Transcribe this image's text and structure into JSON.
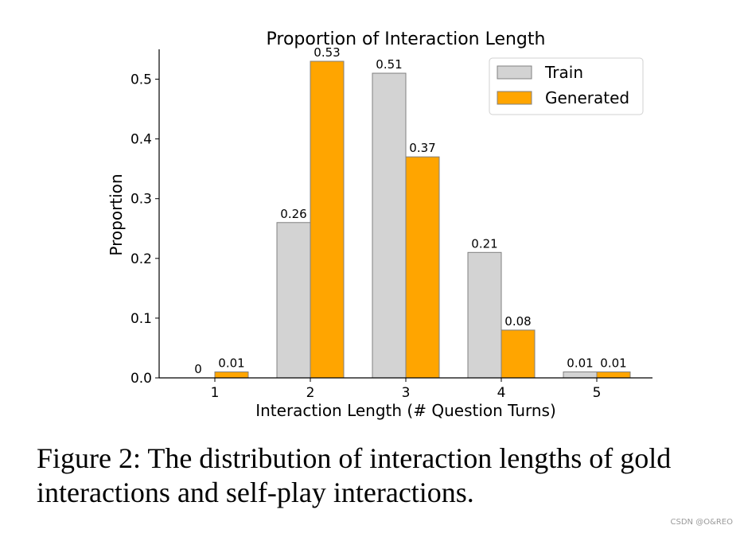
{
  "chart_data": {
    "type": "bar",
    "title": "Proportion of Interaction Length",
    "xlabel": "Interaction Length (# Question Turns)",
    "ylabel": "Proportion",
    "categories": [
      "1",
      "2",
      "3",
      "4",
      "5"
    ],
    "series": [
      {
        "name": "Train",
        "values": [
          0,
          0.26,
          0.51,
          0.21,
          0.01
        ],
        "labels": [
          "0",
          "0.26",
          "0.51",
          "0.21",
          "0.01"
        ],
        "color": "#d3d3d3"
      },
      {
        "name": "Generated",
        "values": [
          0.01,
          0.53,
          0.37,
          0.08,
          0.01
        ],
        "labels": [
          "0.01",
          "0.53",
          "0.37",
          "0.08",
          "0.01"
        ],
        "color": "#ffa500"
      }
    ],
    "ylim": [
      0,
      0.55
    ],
    "yticks": [
      0.0,
      0.1,
      0.2,
      0.3,
      0.4,
      0.5
    ],
    "ytick_labels": [
      "0.0",
      "0.1",
      "0.2",
      "0.3",
      "0.4",
      "0.5"
    ],
    "legend": "top-right",
    "grid": false
  },
  "caption": {
    "line1": "Figure 2: The distribution of interaction lengths of gold",
    "line2": "interactions and self-play interactions."
  },
  "watermark": "CSDN @O&REO"
}
